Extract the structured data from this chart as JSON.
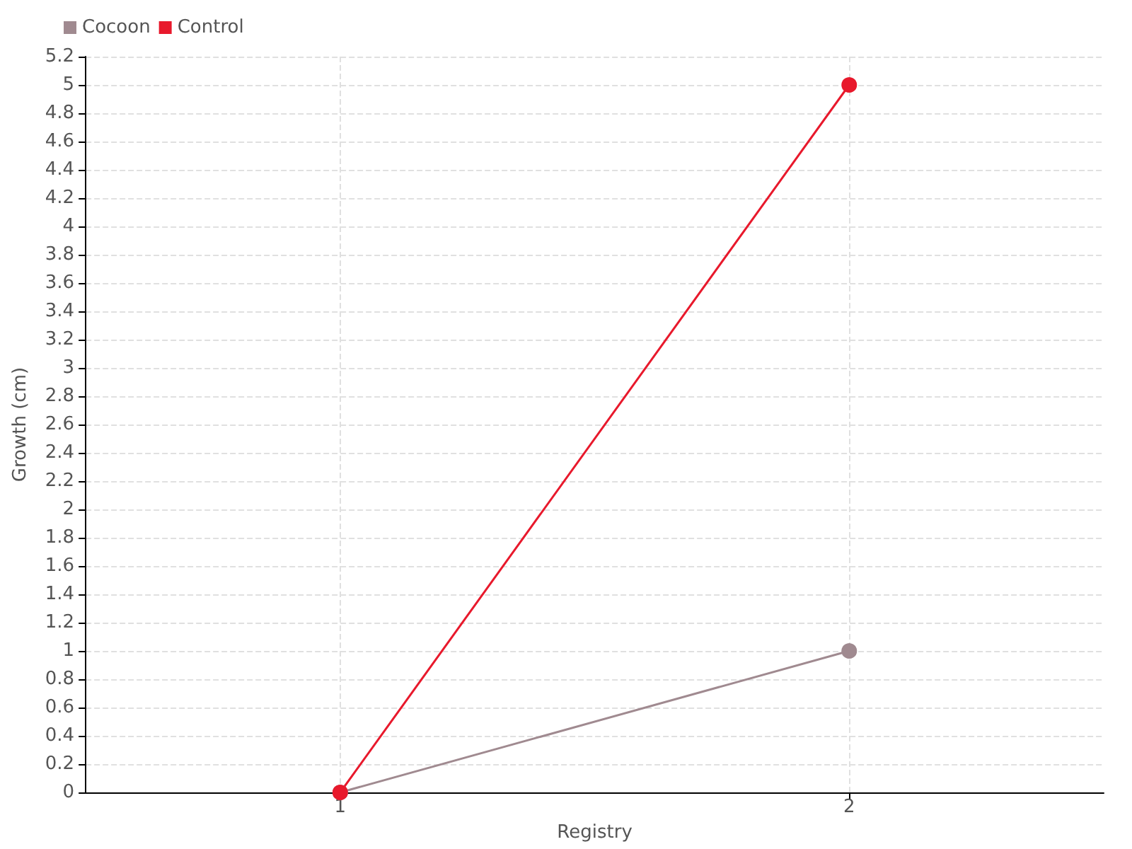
{
  "chart_data": {
    "type": "line",
    "xlabel": "Registry",
    "ylabel": "Growth (cm)",
    "x": [
      1,
      2
    ],
    "series": [
      {
        "name": "Cocoon",
        "color": "#a08a90",
        "values": [
          0,
          1
        ]
      },
      {
        "name": "Control",
        "color": "#e8192c",
        "values": [
          0,
          5
        ]
      }
    ],
    "xlim": [
      0.5,
      2.5
    ],
    "xticks": [
      1,
      2
    ],
    "ylim": [
      0,
      5.2
    ],
    "yticks": [
      0,
      0.2,
      0.4,
      0.6,
      0.8,
      1,
      1.2,
      1.4,
      1.6,
      1.8,
      2,
      2.2,
      2.4,
      2.6,
      2.8,
      3,
      3.2,
      3.4,
      3.6,
      3.8,
      4,
      4.2,
      4.4,
      4.6,
      4.8,
      5,
      5.2
    ],
    "grid": true,
    "legend": "top left",
    "marker": "circle",
    "line_style": "solid"
  }
}
